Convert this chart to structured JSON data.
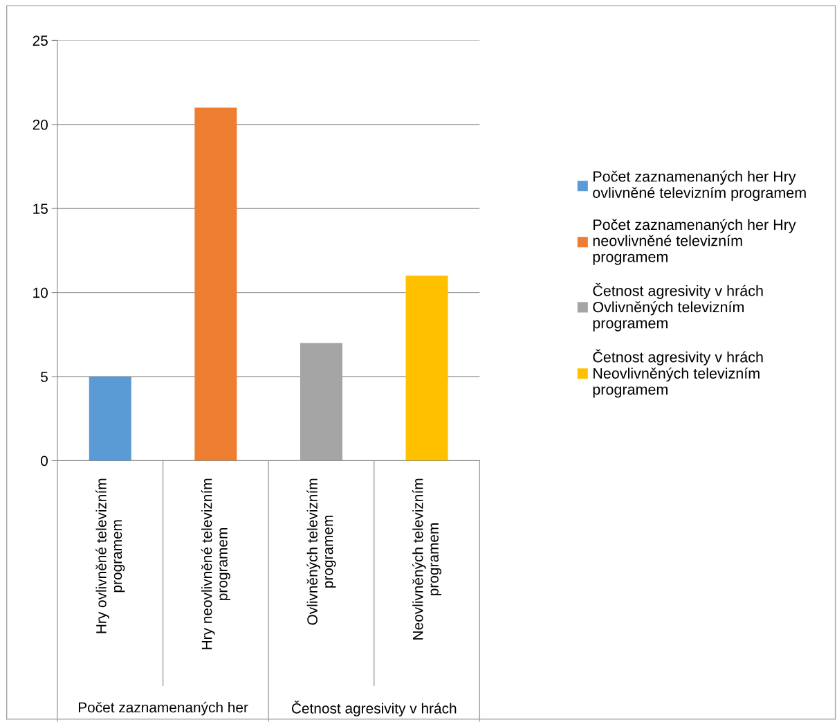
{
  "chart_data": {
    "type": "bar",
    "categories": [
      "Hry ovlivněné televizním\nprogramem",
      "Hry neovlivněné televizním\nprogramem",
      "Ovlivněných televizním\nprogramem",
      "Neovlivněných televizním\nprogramem"
    ],
    "series": [
      {
        "name": "Počet zaznamenaných her Hry\novlivněné televizním programem",
        "color": "#5b9bd5",
        "values": [
          5,
          null,
          null,
          null
        ]
      },
      {
        "name": "Počet zaznamenaných her Hry\nneovlivněné televizním\nprogramem",
        "color": "#ed7d31",
        "values": [
          null,
          21,
          null,
          null
        ]
      },
      {
        "name": "Četnost agresivity v hrách\nOvlivněných televizním\nprogramem",
        "color": "#a5a5a5",
        "values": [
          null,
          null,
          7,
          null
        ]
      },
      {
        "name": "Četnost agresivity v hrách\nNeovlivněných televizním\nprogramem",
        "color": "#ffc000",
        "values": [
          null,
          null,
          null,
          11
        ]
      }
    ],
    "annotations": [
      "Počet zaznamenaných her",
      "Četnost agresivity v hrách"
    ],
    "ylim": [
      0,
      25
    ],
    "yticks": [
      0,
      5,
      10,
      15,
      20,
      25
    ],
    "grid": "y",
    "legend": "right"
  }
}
